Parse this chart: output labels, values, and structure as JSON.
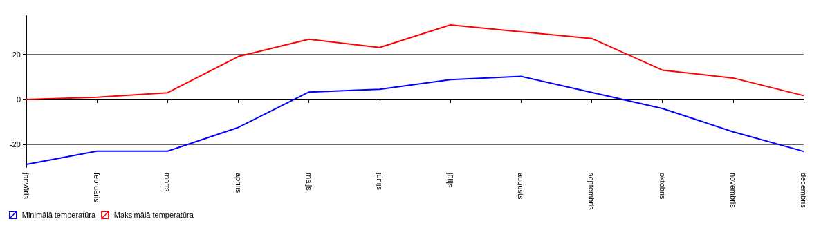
{
  "chart_data": {
    "type": "line",
    "categories": [
      "janvāris",
      "februāris",
      "marts",
      "aprīlis",
      "maijs",
      "jūnijs",
      "jūlijs",
      "augusts",
      "septembris",
      "oktobris",
      "novembris",
      "decembris"
    ],
    "series": [
      {
        "name": "Minimālā temperatūra",
        "color": "#0000ff",
        "values": [
          -28.8,
          -22.9,
          -22.9,
          -12.4,
          3.3,
          4.5,
          8.8,
          10.2,
          3.1,
          -4,
          -14.3,
          -23
        ]
      },
      {
        "name": "Maksimālā temperatūra",
        "color": "#ff0000",
        "values": [
          0,
          1,
          3,
          19,
          26.7,
          23,
          33,
          30,
          27,
          13,
          9.5,
          1.7
        ]
      }
    ],
    "ylim": [
      -30,
      37
    ],
    "yticks": [
      -20,
      0,
      20
    ],
    "grid": "y",
    "legend": "bottom left",
    "marker": "none",
    "line_style": "solid"
  }
}
